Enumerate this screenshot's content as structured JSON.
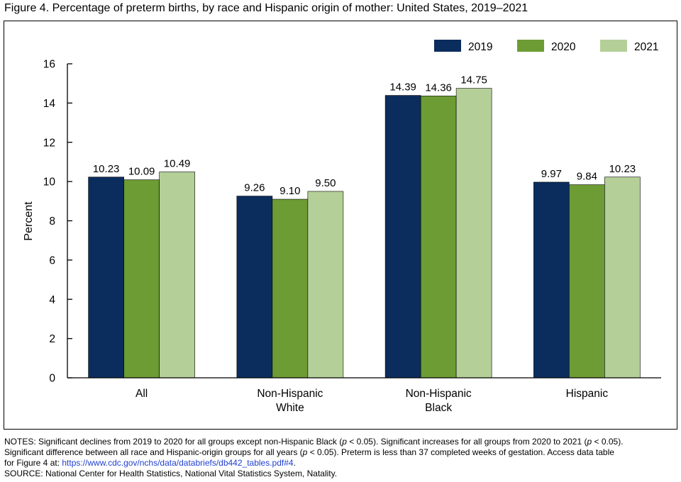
{
  "title": "Figure 4. Percentage of preterm births, by race and Hispanic origin of mother: United States, 2019–2021",
  "chart_data": {
    "type": "bar",
    "categories": [
      [
        "All"
      ],
      [
        "Non-Hispanic",
        "White"
      ],
      [
        "Non-Hispanic",
        "Black"
      ],
      [
        "Hispanic"
      ]
    ],
    "series": [
      {
        "name": "2019",
        "color": "#0b2d5e",
        "values": [
          10.23,
          9.26,
          14.39,
          9.97
        ],
        "labels": [
          "10.23",
          "9.26",
          "14.39",
          "9.97"
        ]
      },
      {
        "name": "2020",
        "color": "#6c9c33",
        "values": [
          10.09,
          9.1,
          14.36,
          9.84
        ],
        "labels": [
          "10.09",
          "9.10",
          "14.36",
          "9.84"
        ]
      },
      {
        "name": "2021",
        "color": "#b4cf98",
        "values": [
          10.49,
          9.5,
          14.75,
          10.23
        ],
        "labels": [
          "10.49",
          "9.50",
          "14.75",
          "10.23"
        ]
      }
    ],
    "ylabel": "Percent",
    "ylim": [
      0,
      16
    ],
    "yticks": [
      0,
      2,
      4,
      6,
      8,
      10,
      12,
      14,
      16
    ],
    "grid": false,
    "legend_position": "top-right"
  },
  "notes": {
    "line1_a": "NOTES: Significant declines from 2019 to 2020 for all groups except non-Hispanic Black (",
    "p1": "p",
    "line1_b": " < 0.05). Significant increases for all groups from 2020 to 2021 (",
    "p2": "p",
    "line1_c": " < 0.05).",
    "line2_a": "Significant difference between all race and Hispanic-origin groups for all years (",
    "p3": "p",
    "line2_b": " < 0.05). Preterm is less than 37 completed weeks of gestation. Access data table",
    "line3_a": "for Figure 4 at: ",
    "link": "https://www.cdc.gov/nchs/data/databriefs/db442_tables.pdf#4",
    "line3_b": ".",
    "source": "SOURCE: National Center for Health Statistics, National Vital Statistics System, Natality."
  }
}
